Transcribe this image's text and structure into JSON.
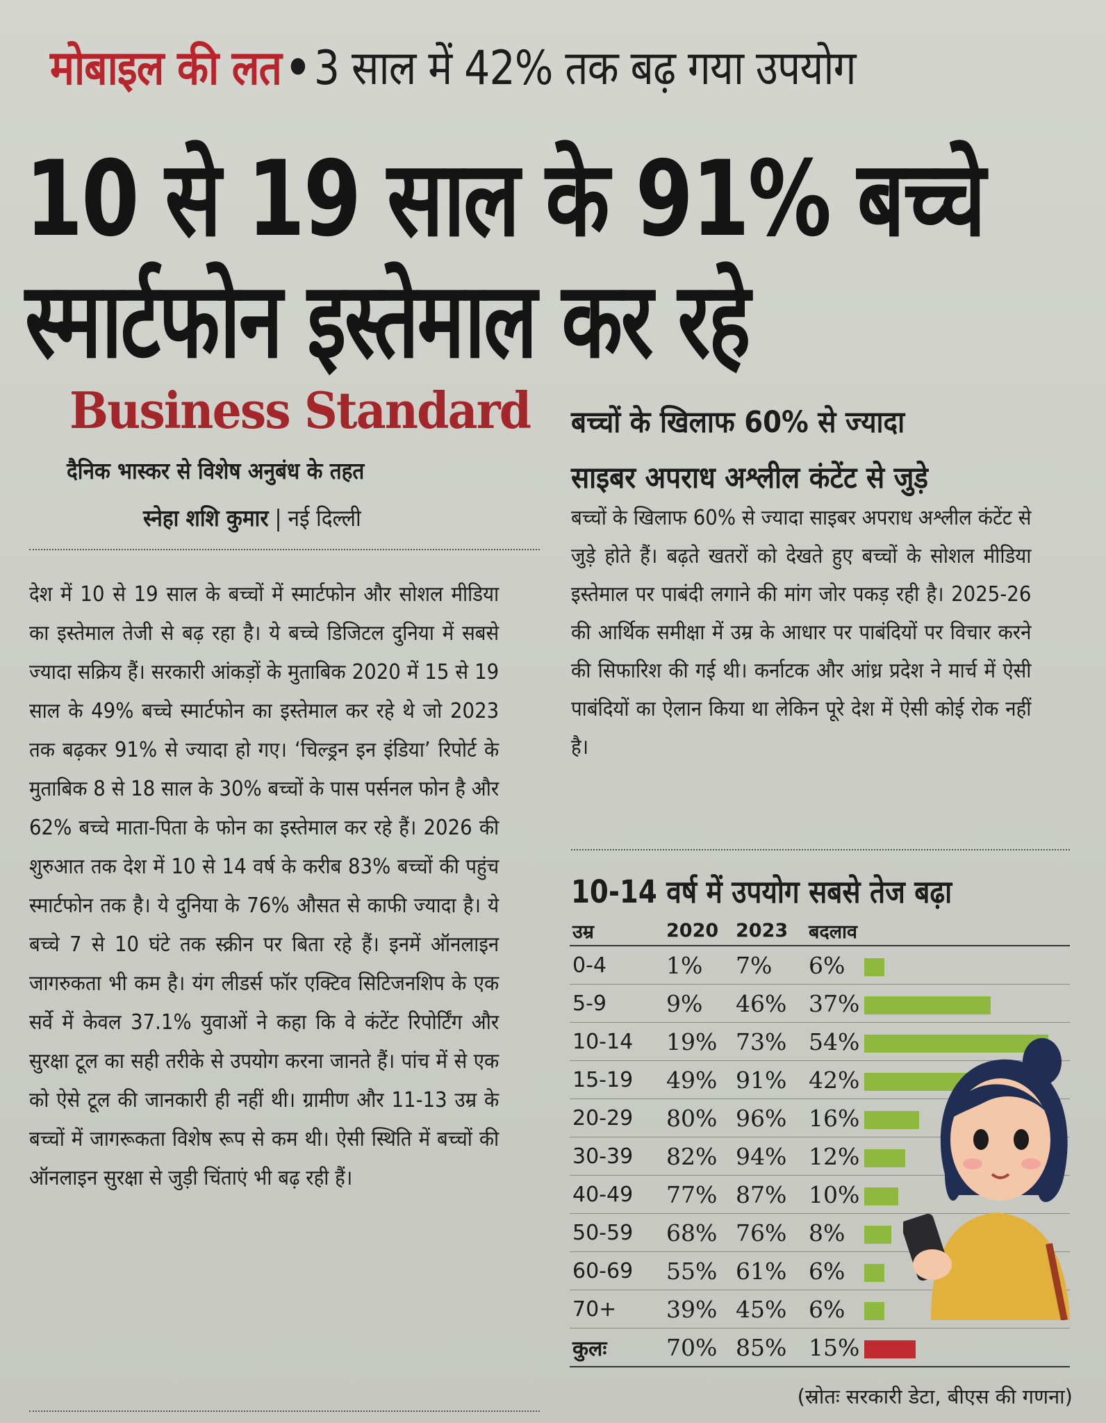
{
  "kicker": {
    "topic": "मोबाइल की लत",
    "bullet": "•",
    "text": "3 साल में 42% तक बढ़ गया उपयोग"
  },
  "headline": {
    "line1": "10 से 19 साल के 91% बच्चे",
    "line2": "स्मार्टफोन इस्तेमाल कर रहे"
  },
  "brand": "Business Standard",
  "agreement": "दैनिक भास्कर से विशेष अनुबंध के तहत",
  "byline": {
    "author": "स्नेहा शशि कुमार",
    "separator": "|",
    "place": "नई दिल्ली"
  },
  "article": {
    "body": "देश में 10 से 19 साल के बच्चों में स्मार्टफोन और सोशल मीडिया का इस्तेमाल तेजी से बढ़ रहा है। ये बच्चे डिजिटल दुनिया में सबसे ज्यादा सक्रिय हैं। सरकारी आंकड़ों के मुताबिक 2020 में 15 से 19 साल के 49% बच्चे स्मार्टफोन का इस्तेमाल कर रहे थे जो 2023 तक बढ़कर 91% से ज्यादा हो गए। ‘चिल्ड्रन इन इंडिया’ रिपोर्ट के मुताबिक 8 से 18 साल के 30% बच्चों के पास पर्सनल फोन है और 62% बच्चे माता-पिता के फोन का इस्तेमाल कर रहे हैं। 2026 की शुरुआत तक देश में 10 से 14 वर्ष के करीब 83% बच्चों की पहुंच स्मार्टफोन तक है। ये दुनिया के 76% औसत से काफी ज्यादा है। ये बच्चे 7 से 10 घंटे तक स्क्रीन पर बिता रहे हैं। इनमें ऑनलाइन जागरुकता भी कम है। यंग लीडर्स फॉर एक्टिव सिटिजनशिप के एक सर्वे में केवल 37.1% युवाओं ने कहा कि वे कंटेंट रिपोर्टिंग और सुरक्षा टूल का सही तरीके से उपयोग करना जानते हैं। पांच में से एक को ऐसे टूल की जानकारी ही नहीं थी। ग्रामीण और 11-13 उम्र के बच्चों में जागरूकता विशेष रूप से कम थी। ऐसी स्थिति में बच्चों की ऑनलाइन सुरक्षा से जुड़ी चिंताएं भी बढ़ रही हैं।"
  },
  "sidebar": {
    "subhead_line1": "बच्चों के खिलाफ 60% से ज्यादा",
    "subhead_line2": "साइबर अपराध अश्लील कंटेंट से जुड़े",
    "body": "बच्चों के खिलाफ 60% से ज्यादा साइबर अपराध अश्लील कंटेंट से जुड़े होते हैं। बढ़ते खतरों को देखते हुए बच्चों के सोशल मीडिया इस्तेमाल पर पाबंदी लगाने की मांग जोर पकड़ रही है। 2025-26 की आर्थिक समीक्षा में उम्र के आधार पर पाबंदियों पर विचार करने की सिफारिश की गई थी। कर्नाटक और आंध्र प्रदेश ने मार्च में ऐसी पाबंदियों का ऐलान किया था लेकिन पूरे देश में ऐसी कोई रोक नहीं है।"
  },
  "chart_data": {
    "type": "table",
    "title": "10-14 वर्ष में उपयोग सबसे तेज बढ़ा",
    "columns": [
      "उम्र",
      "2020",
      "2023",
      "बदलाव"
    ],
    "rows": [
      {
        "group": "0-4",
        "y2020": "1%",
        "y2023": "7%",
        "change": "6%",
        "change_value": 6
      },
      {
        "group": "5-9",
        "y2020": "9%",
        "y2023": "46%",
        "change": "37%",
        "change_value": 37
      },
      {
        "group": "10-14",
        "y2020": "19%",
        "y2023": "73%",
        "change": "54%",
        "change_value": 54
      },
      {
        "group": "15-19",
        "y2020": "49%",
        "y2023": "91%",
        "change": "42%",
        "change_value": 42
      },
      {
        "group": "20-29",
        "y2020": "80%",
        "y2023": "96%",
        "change": "16%",
        "change_value": 16
      },
      {
        "group": "30-39",
        "y2020": "82%",
        "y2023": "94%",
        "change": "12%",
        "change_value": 12
      },
      {
        "group": "40-49",
        "y2020": "77%",
        "y2023": "87%",
        "change": "10%",
        "change_value": 10
      },
      {
        "group": "50-59",
        "y2020": "68%",
        "y2023": "76%",
        "change": "8%",
        "change_value": 8
      },
      {
        "group": "60-69",
        "y2020": "55%",
        "y2023": "61%",
        "change": "6%",
        "change_value": 6
      },
      {
        "group": "70+",
        "y2020": "39%",
        "y2023": "45%",
        "change": "6%",
        "change_value": 6
      }
    ],
    "total": {
      "group": "कुलः",
      "y2020": "70%",
      "y2023": "85%",
      "change": "15%",
      "change_value": 15
    },
    "bar_color": "#8fb83e",
    "total_bar_color": "#c0292e",
    "source": "(स्रोतः सरकारी डेटा, बीएस की गणना)"
  },
  "illustration": "girl-with-smartphone"
}
